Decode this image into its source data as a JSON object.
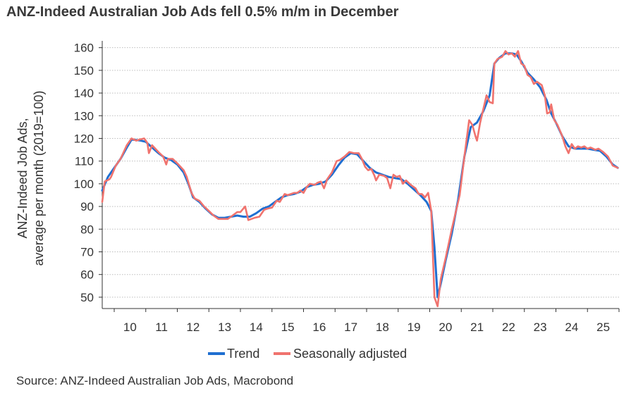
{
  "chart_data": {
    "type": "line",
    "title": "ANZ-Indeed Australian Job Ads fell 0.5% m/m in December",
    "ylabel_lines": [
      "ANZ-Indeed Job Ads,",
      "average per month (2019=100)"
    ],
    "xlabel": "",
    "ylim": [
      45,
      163
    ],
    "yticks": [
      50,
      60,
      70,
      80,
      90,
      100,
      110,
      120,
      130,
      140,
      150,
      160
    ],
    "xlim": [
      2009.62,
      2026.0
    ],
    "xticks": [
      {
        "label": "10",
        "x": 2010.5
      },
      {
        "label": "11",
        "x": 2011.5
      },
      {
        "label": "12",
        "x": 2012.5
      },
      {
        "label": "13",
        "x": 2013.5
      },
      {
        "label": "14",
        "x": 2014.5
      },
      {
        "label": "15",
        "x": 2015.5
      },
      {
        "label": "16",
        "x": 2016.5
      },
      {
        "label": "17",
        "x": 2017.5
      },
      {
        "label": "18",
        "x": 2018.5
      },
      {
        "label": "19",
        "x": 2019.5
      },
      {
        "label": "20",
        "x": 2020.5
      },
      {
        "label": "21",
        "x": 2021.5
      },
      {
        "label": "22",
        "x": 2022.5
      },
      {
        "label": "23",
        "x": 2023.5
      },
      {
        "label": "24",
        "x": 2024.5
      },
      {
        "label": "25",
        "x": 2025.5
      }
    ],
    "grid": "horizontal-dotted",
    "legend_position": "bottom",
    "series": [
      {
        "name": "Trend",
        "color": "#1f6fd1",
        "points": [
          [
            2009.62,
            97
          ],
          [
            2009.8,
            103
          ],
          [
            2010.0,
            107
          ],
          [
            2010.2,
            111
          ],
          [
            2010.4,
            116
          ],
          [
            2010.55,
            119.5
          ],
          [
            2010.7,
            119.3
          ],
          [
            2010.85,
            119
          ],
          [
            2011.0,
            118.5
          ],
          [
            2011.2,
            116
          ],
          [
            2011.4,
            113.5
          ],
          [
            2011.6,
            111.5
          ],
          [
            2011.8,
            110.5
          ],
          [
            2012.0,
            108.5
          ],
          [
            2012.2,
            105
          ],
          [
            2012.35,
            100
          ],
          [
            2012.5,
            94
          ],
          [
            2012.7,
            92
          ],
          [
            2012.9,
            89
          ],
          [
            2013.1,
            86.5
          ],
          [
            2013.3,
            85
          ],
          [
            2013.5,
            85
          ],
          [
            2013.7,
            85.5
          ],
          [
            2013.9,
            86
          ],
          [
            2014.1,
            85.5
          ],
          [
            2014.3,
            85.5
          ],
          [
            2014.5,
            87
          ],
          [
            2014.7,
            89
          ],
          [
            2014.9,
            90
          ],
          [
            2015.1,
            92
          ],
          [
            2015.3,
            94
          ],
          [
            2015.5,
            95
          ],
          [
            2015.7,
            95.5
          ],
          [
            2015.9,
            96.5
          ],
          [
            2016.1,
            98.5
          ],
          [
            2016.3,
            99.5
          ],
          [
            2016.5,
            100
          ],
          [
            2016.7,
            101
          ],
          [
            2016.9,
            104
          ],
          [
            2017.1,
            108
          ],
          [
            2017.3,
            111.5
          ],
          [
            2017.5,
            113.5
          ],
          [
            2017.7,
            113
          ],
          [
            2017.9,
            110
          ],
          [
            2018.1,
            107
          ],
          [
            2018.3,
            105
          ],
          [
            2018.5,
            104
          ],
          [
            2018.7,
            103
          ],
          [
            2018.9,
            102.5
          ],
          [
            2019.1,
            102
          ],
          [
            2019.3,
            100
          ],
          [
            2019.5,
            97.5
          ],
          [
            2019.7,
            95
          ],
          [
            2019.9,
            92
          ],
          [
            2020.05,
            88
          ],
          [
            2020.15,
            72
          ],
          [
            2020.25,
            50
          ],
          [
            2020.35,
            56
          ],
          [
            2020.5,
            66
          ],
          [
            2020.7,
            78
          ],
          [
            2020.9,
            93
          ],
          [
            2021.1,
            112
          ],
          [
            2021.3,
            125
          ],
          [
            2021.5,
            127
          ],
          [
            2021.7,
            132
          ],
          [
            2021.9,
            139
          ],
          [
            2022.05,
            153
          ],
          [
            2022.2,
            155.5
          ],
          [
            2022.4,
            157.5
          ],
          [
            2022.6,
            157.5
          ],
          [
            2022.75,
            157
          ],
          [
            2022.9,
            154
          ],
          [
            2023.1,
            149
          ],
          [
            2023.3,
            146
          ],
          [
            2023.5,
            142.5
          ],
          [
            2023.7,
            137
          ],
          [
            2023.85,
            131
          ],
          [
            2024.0,
            127
          ],
          [
            2024.2,
            121
          ],
          [
            2024.4,
            116.5
          ],
          [
            2024.6,
            115.5
          ],
          [
            2024.8,
            115.5
          ],
          [
            2025.0,
            115.5
          ],
          [
            2025.2,
            115
          ],
          [
            2025.4,
            114.5
          ],
          [
            2025.6,
            112
          ],
          [
            2025.8,
            108.5
          ],
          [
            2025.96,
            107
          ]
        ]
      },
      {
        "name": "Seasonally adjusted",
        "color": "#f0736e",
        "points": [
          [
            2009.62,
            92
          ],
          [
            2009.7,
            101
          ],
          [
            2009.85,
            102
          ],
          [
            2009.9,
            103
          ],
          [
            2010.05,
            108
          ],
          [
            2010.2,
            111
          ],
          [
            2010.4,
            117
          ],
          [
            2010.55,
            120
          ],
          [
            2010.7,
            119
          ],
          [
            2010.8,
            119.5
          ],
          [
            2010.95,
            120
          ],
          [
            2011.05,
            118
          ],
          [
            2011.1,
            113.5
          ],
          [
            2011.2,
            117
          ],
          [
            2011.4,
            114
          ],
          [
            2011.55,
            112
          ],
          [
            2011.65,
            108.5
          ],
          [
            2011.7,
            111
          ],
          [
            2011.85,
            111
          ],
          [
            2012.0,
            109
          ],
          [
            2012.2,
            106
          ],
          [
            2012.3,
            103
          ],
          [
            2012.45,
            96
          ],
          [
            2012.55,
            93.5
          ],
          [
            2012.7,
            92.5
          ],
          [
            2012.85,
            90
          ],
          [
            2013.0,
            88
          ],
          [
            2013.15,
            86
          ],
          [
            2013.3,
            84.5
          ],
          [
            2013.5,
            84.5
          ],
          [
            2013.6,
            84.5
          ],
          [
            2013.75,
            86
          ],
          [
            2013.9,
            87.5
          ],
          [
            2014.0,
            87.5
          ],
          [
            2014.15,
            90
          ],
          [
            2014.25,
            84
          ],
          [
            2014.35,
            84.5
          ],
          [
            2014.45,
            85
          ],
          [
            2014.6,
            85.5
          ],
          [
            2014.75,
            88.5
          ],
          [
            2014.85,
            89
          ],
          [
            2015.0,
            89.5
          ],
          [
            2015.15,
            92.5
          ],
          [
            2015.25,
            92
          ],
          [
            2015.4,
            95.5
          ],
          [
            2015.5,
            95
          ],
          [
            2015.6,
            95.5
          ],
          [
            2015.7,
            96
          ],
          [
            2015.8,
            96
          ],
          [
            2015.9,
            97
          ],
          [
            2016.0,
            96
          ],
          [
            2016.1,
            98.5
          ],
          [
            2016.2,
            100
          ],
          [
            2016.35,
            99.5
          ],
          [
            2016.45,
            100.5
          ],
          [
            2016.55,
            101
          ],
          [
            2016.65,
            98
          ],
          [
            2016.75,
            102
          ],
          [
            2016.9,
            105
          ],
          [
            2017.05,
            110
          ],
          [
            2017.15,
            110.5
          ],
          [
            2017.3,
            112
          ],
          [
            2017.45,
            114
          ],
          [
            2017.6,
            113.5
          ],
          [
            2017.75,
            113.5
          ],
          [
            2017.85,
            111
          ],
          [
            2017.95,
            107.5
          ],
          [
            2018.05,
            106
          ],
          [
            2018.15,
            106.5
          ],
          [
            2018.25,
            103.5
          ],
          [
            2018.3,
            101.5
          ],
          [
            2018.4,
            104
          ],
          [
            2018.55,
            103.5
          ],
          [
            2018.65,
            102.5
          ],
          [
            2018.75,
            98
          ],
          [
            2018.85,
            104
          ],
          [
            2018.95,
            103
          ],
          [
            2019.05,
            103.5
          ],
          [
            2019.15,
            100
          ],
          [
            2019.25,
            101.5
          ],
          [
            2019.4,
            99.5
          ],
          [
            2019.55,
            98
          ],
          [
            2019.65,
            95.5
          ],
          [
            2019.75,
            95.5
          ],
          [
            2019.85,
            94
          ],
          [
            2019.95,
            96
          ],
          [
            2020.05,
            88
          ],
          [
            2020.15,
            50
          ],
          [
            2020.25,
            46
          ],
          [
            2020.35,
            58
          ],
          [
            2020.5,
            67
          ],
          [
            2020.7,
            80
          ],
          [
            2020.95,
            95
          ],
          [
            2021.1,
            112
          ],
          [
            2021.25,
            128
          ],
          [
            2021.35,
            126
          ],
          [
            2021.45,
            121
          ],
          [
            2021.5,
            119
          ],
          [
            2021.6,
            127
          ],
          [
            2021.7,
            133
          ],
          [
            2021.8,
            139
          ],
          [
            2021.9,
            136
          ],
          [
            2022.0,
            135.5
          ],
          [
            2022.05,
            153
          ],
          [
            2022.15,
            155
          ],
          [
            2022.3,
            156
          ],
          [
            2022.4,
            158.5
          ],
          [
            2022.5,
            157
          ],
          [
            2022.6,
            157.5
          ],
          [
            2022.7,
            156
          ],
          [
            2022.8,
            158.5
          ],
          [
            2022.9,
            153
          ],
          [
            2023.0,
            152
          ],
          [
            2023.1,
            148
          ],
          [
            2023.2,
            147
          ],
          [
            2023.3,
            144
          ],
          [
            2023.4,
            145
          ],
          [
            2023.55,
            143.5
          ],
          [
            2023.65,
            139
          ],
          [
            2023.72,
            131
          ],
          [
            2023.8,
            131.5
          ],
          [
            2023.85,
            135
          ],
          [
            2023.95,
            128
          ],
          [
            2024.05,
            126
          ],
          [
            2024.2,
            121
          ],
          [
            2024.3,
            116.5
          ],
          [
            2024.4,
            113.5
          ],
          [
            2024.5,
            117.5
          ],
          [
            2024.6,
            115.5
          ],
          [
            2024.7,
            116.5
          ],
          [
            2024.8,
            116
          ],
          [
            2024.9,
            116.5
          ],
          [
            2025.0,
            115.5
          ],
          [
            2025.1,
            116
          ],
          [
            2025.25,
            115
          ],
          [
            2025.35,
            115.5
          ],
          [
            2025.5,
            114
          ],
          [
            2025.65,
            112
          ],
          [
            2025.8,
            108
          ],
          [
            2025.96,
            107
          ]
        ]
      }
    ],
    "legend": [
      {
        "label": "Trend",
        "color": "#1f6fd1"
      },
      {
        "label": "Seasonally adjusted",
        "color": "#f0736e"
      }
    ],
    "source": "Source: ANZ-Indeed Australian Job Ads, Macrobond"
  }
}
